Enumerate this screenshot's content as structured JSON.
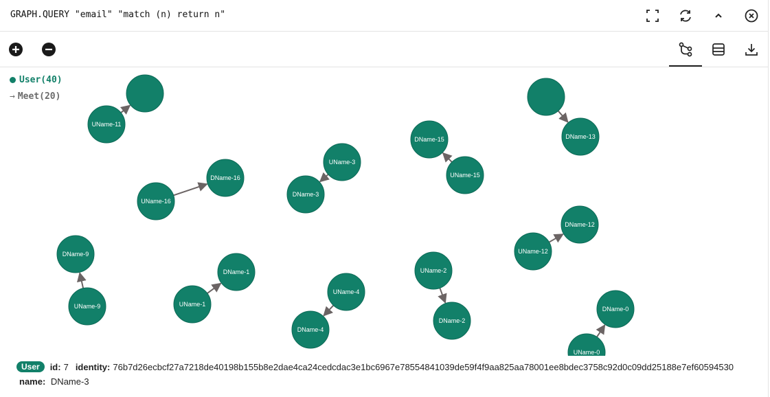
{
  "query": "GRAPH.QUERY \"email\" \"match (n) return n\"",
  "header": {
    "icons": [
      "fullscreen-icon",
      "refresh-icon",
      "chevron-up-icon",
      "close-circle-icon"
    ]
  },
  "toolbar": {
    "zoom_icons": [
      "zoom-in-icon",
      "zoom-out-icon"
    ],
    "view_icons": [
      "graph-view-icon",
      "table-view-icon",
      "download-icon"
    ]
  },
  "legend": {
    "node_label": "User(40)",
    "edge_label": "Meet(20)"
  },
  "colors": {
    "node": "#128069",
    "node_border": "#0d6a57",
    "edge": "#6b6464"
  },
  "graph": {
    "nodes": [
      {
        "id": "u11",
        "label": "UName-11"
      },
      {
        "id": "d11",
        "label": ""
      },
      {
        "id": "u16",
        "label": "UName-16"
      },
      {
        "id": "d16",
        "label": "DName-16"
      },
      {
        "id": "u3",
        "label": "UName-3"
      },
      {
        "id": "d3",
        "label": "DName-3"
      },
      {
        "id": "d15",
        "label": "DName-15"
      },
      {
        "id": "u15",
        "label": "UName-15"
      },
      {
        "id": "u13",
        "label": ""
      },
      {
        "id": "d13",
        "label": "DName-13"
      },
      {
        "id": "u12",
        "label": "UName-12"
      },
      {
        "id": "d12",
        "label": "DName-12"
      },
      {
        "id": "d9",
        "label": "DName-9"
      },
      {
        "id": "u9",
        "label": "UName-9"
      },
      {
        "id": "u1",
        "label": "UName-1"
      },
      {
        "id": "d1",
        "label": "DName-1"
      },
      {
        "id": "u4",
        "label": "UName-4"
      },
      {
        "id": "d4",
        "label": "DName-4"
      },
      {
        "id": "u2",
        "label": "UName-2"
      },
      {
        "id": "d2",
        "label": "DName-2"
      },
      {
        "id": "u0",
        "label": "UName-0"
      },
      {
        "id": "d0",
        "label": "DName-0"
      }
    ],
    "edges": [
      {
        "from": "u11",
        "to": "d11"
      },
      {
        "from": "u16",
        "to": "d16"
      },
      {
        "from": "u3",
        "to": "d3"
      },
      {
        "from": "u15",
        "to": "d15"
      },
      {
        "from": "u13",
        "to": "d13"
      },
      {
        "from": "u12",
        "to": "d12"
      },
      {
        "from": "u9",
        "to": "d9"
      },
      {
        "from": "u1",
        "to": "d1"
      },
      {
        "from": "u4",
        "to": "d4"
      },
      {
        "from": "u2",
        "to": "d2"
      },
      {
        "from": "u0",
        "to": "d0"
      }
    ]
  },
  "details": {
    "badge": "User",
    "id_key": "id:",
    "id_value": "7",
    "identity_key": "identity:",
    "identity_value": "76b7d26ecbcf27a7218de40198b155b8e2dae4ca24cedcdac3e1bc6967e78554841039de59f4f9aa825aa78001ee8bdec3758c92d0c09dd25188e7ef60594530",
    "name_key": "name:",
    "name_value": "DName-3"
  }
}
